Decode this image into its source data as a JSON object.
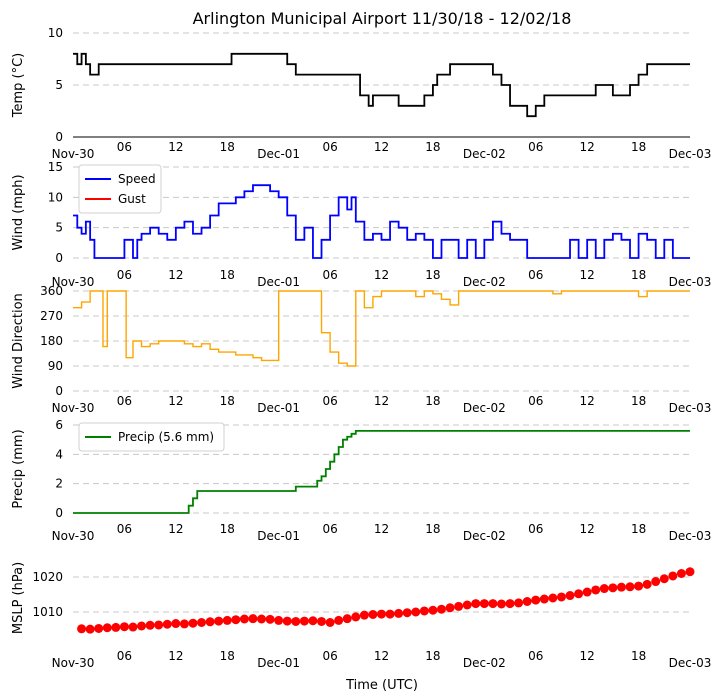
{
  "title": "Arlington Municipal Airport 11/30/18 - 12/02/18",
  "xlabel": "Time (UTC)",
  "time_ticks": [
    "Nov-30",
    "06",
    "12",
    "18",
    "Dec-01",
    "06",
    "12",
    "18",
    "Dec-02",
    "06",
    "12",
    "18",
    "Dec-03"
  ],
  "chart_data": [
    {
      "type": "line",
      "ylabel": "Temp (°C)",
      "ylim": [
        0,
        10
      ],
      "yticks": [
        "0",
        "5",
        "10"
      ],
      "color": "#000000",
      "grid": "horizontal dashed",
      "series": [
        {
          "name": "",
          "x_hours": [
            0,
            0.5,
            1,
            1.5,
            2,
            2.5,
            3,
            3.5,
            4,
            6,
            9,
            12,
            15,
            18,
            18.5,
            20,
            22,
            24,
            25,
            26,
            28,
            30,
            33,
            33.5,
            34.5,
            35,
            36,
            37,
            38,
            39,
            40,
            41,
            42,
            42.5,
            43,
            44,
            45,
            46,
            48,
            49,
            50,
            51,
            52,
            53,
            54,
            55,
            56,
            58,
            60,
            61,
            62,
            63,
            64,
            64.5,
            65,
            66,
            67,
            68,
            69,
            70,
            71,
            72
          ],
          "values": [
            8,
            7,
            8,
            7,
            6,
            6,
            7,
            7,
            7,
            7,
            7,
            7,
            7,
            7,
            8,
            8,
            8,
            8,
            7,
            6,
            6,
            6,
            6,
            4,
            3,
            4,
            4,
            4,
            3,
            3,
            3,
            4,
            5,
            6,
            6,
            7,
            7,
            7,
            7,
            6,
            5,
            3,
            3,
            2,
            3,
            4,
            4,
            4,
            4,
            5,
            5,
            4,
            4,
            4,
            5,
            6,
            7,
            7,
            7,
            7,
            7,
            7
          ]
        }
      ]
    },
    {
      "type": "line",
      "ylabel": "Wind (mph)",
      "ylim": [
        0,
        15
      ],
      "yticks": [
        "0",
        "5",
        "10",
        "15"
      ],
      "legend": "top-left",
      "grid": "horizontal dashed",
      "series": [
        {
          "name": "Speed",
          "color": "#0000ff",
          "x_hours": [
            0,
            0.5,
            1,
            1.5,
            2,
            2.5,
            3,
            3.3,
            4,
            5,
            6,
            7,
            7.5,
            8,
            9,
            10,
            11,
            12,
            13,
            14,
            15,
            16,
            17,
            18,
            19,
            20,
            21,
            22,
            23,
            24,
            25,
            26,
            27,
            28,
            29,
            30,
            31,
            32,
            32.5,
            33,
            34,
            35,
            36,
            37,
            38,
            39,
            40,
            41,
            42,
            43,
            44,
            45,
            46,
            47,
            48,
            49,
            50,
            51,
            52,
            53,
            54,
            55,
            56,
            57,
            58,
            59,
            60,
            61,
            62,
            63,
            64,
            65,
            66,
            67,
            68,
            69,
            70,
            71,
            72
          ],
          "values": [
            7,
            5,
            4,
            6,
            3,
            0,
            0,
            0,
            0,
            0,
            3,
            0,
            3,
            4,
            5,
            4,
            3,
            5,
            6,
            4,
            5,
            7,
            9,
            9,
            10,
            11,
            12,
            12,
            11,
            10,
            7,
            3,
            5,
            0,
            3,
            7,
            10,
            8,
            10,
            6,
            3,
            4,
            3,
            6,
            5,
            3,
            4,
            3,
            0,
            3,
            3,
            0,
            3,
            0,
            3,
            6,
            4,
            3,
            3,
            0,
            0,
            0,
            0,
            0,
            3,
            0,
            3,
            0,
            3,
            4,
            3,
            0,
            4,
            3,
            0,
            3,
            0,
            0,
            0
          ]
        },
        {
          "name": "Gust",
          "color": "#ff0000",
          "x_hours": [],
          "values": []
        }
      ]
    },
    {
      "type": "line",
      "ylabel": "Wind Direction",
      "ylim": [
        0,
        360
      ],
      "yticks": [
        "0",
        "90",
        "180",
        "270",
        "360"
      ],
      "color": "#ffa500",
      "grid": "horizontal dashed",
      "series": [
        {
          "name": "",
          "x_hours": [
            0,
            1,
            2,
            3,
            3.5,
            4,
            5,
            6,
            6.2,
            7,
            8,
            9,
            10,
            11,
            12,
            13,
            14,
            15,
            16,
            17,
            18,
            19,
            20,
            21,
            22,
            23,
            24,
            25,
            26,
            27,
            28,
            29,
            30,
            31,
            32,
            33,
            34,
            35,
            36,
            37,
            38,
            39,
            40,
            41,
            42,
            43,
            44,
            45,
            46,
            47,
            48,
            49,
            50,
            51,
            52,
            53,
            54,
            55,
            56,
            57,
            58,
            59,
            60,
            61,
            62,
            63,
            64,
            65,
            66,
            67,
            68,
            69,
            70,
            71,
            72
          ],
          "values": [
            300,
            320,
            360,
            360,
            160,
            360,
            360,
            360,
            120,
            180,
            160,
            170,
            180,
            180,
            180,
            170,
            160,
            170,
            150,
            140,
            140,
            130,
            130,
            120,
            110,
            110,
            360,
            360,
            360,
            360,
            360,
            210,
            140,
            100,
            90,
            360,
            300,
            340,
            360,
            360,
            360,
            360,
            340,
            360,
            350,
            330,
            310,
            360,
            360,
            360,
            360,
            360,
            360,
            360,
            360,
            360,
            360,
            360,
            350,
            360,
            360,
            360,
            360,
            360,
            360,
            360,
            360,
            360,
            340,
            360,
            360,
            360,
            360,
            360,
            360
          ]
        }
      ]
    },
    {
      "type": "line",
      "ylabel": "Precip (mm)",
      "ylim": [
        0,
        6
      ],
      "yticks": [
        "0",
        "2",
        "4",
        "6"
      ],
      "legend": "top-left",
      "grid": "horizontal dashed",
      "series": [
        {
          "name": "Precip (5.6 mm)",
          "color": "#008000",
          "x_hours": [
            0,
            13,
            13.5,
            14,
            14.5,
            25.5,
            26,
            28,
            28.5,
            29,
            29.5,
            30,
            30.5,
            31,
            31.5,
            32,
            32.5,
            33,
            72
          ],
          "values": [
            0,
            0,
            0.5,
            1.0,
            1.5,
            1.5,
            1.8,
            1.8,
            2.2,
            2.5,
            3.0,
            3.5,
            4.0,
            4.5,
            5.0,
            5.2,
            5.4,
            5.6,
            5.6
          ]
        }
      ]
    },
    {
      "type": "scatter",
      "ylabel": "MSLP (hPa)",
      "ylim": [
        1002,
        1026
      ],
      "yticks": [
        "1010",
        "1020"
      ],
      "color": "#ff0000",
      "grid": "horizontal dashed",
      "series": [
        {
          "name": "",
          "x_hours": [
            1,
            2,
            3,
            4,
            5,
            6,
            7,
            8,
            9,
            10,
            11,
            12,
            13,
            14,
            15,
            16,
            17,
            18,
            19,
            20,
            21,
            22,
            23,
            24,
            25,
            26,
            27,
            28,
            29,
            30,
            31,
            32,
            33,
            34,
            35,
            36,
            37,
            38,
            39,
            40,
            41,
            42,
            43,
            44,
            45,
            46,
            47,
            48,
            49,
            50,
            51,
            52,
            53,
            54,
            55,
            56,
            57,
            58,
            59,
            60,
            61,
            62,
            63,
            64,
            65,
            66,
            67,
            68,
            69,
            70,
            71,
            72
          ],
          "values": [
            1005.2,
            1005.1,
            1005.3,
            1005.5,
            1005.6,
            1005.8,
            1005.7,
            1006.0,
            1006.2,
            1006.3,
            1006.5,
            1006.7,
            1006.6,
            1006.8,
            1007.0,
            1007.2,
            1007.4,
            1007.6,
            1007.8,
            1008.0,
            1008.1,
            1008.0,
            1007.9,
            1007.6,
            1007.4,
            1007.3,
            1007.4,
            1007.5,
            1007.3,
            1007.0,
            1007.6,
            1008.1,
            1008.6,
            1009.1,
            1009.3,
            1009.4,
            1009.4,
            1009.6,
            1009.8,
            1010.0,
            1010.3,
            1010.5,
            1010.8,
            1011.2,
            1011.6,
            1012.0,
            1012.4,
            1012.4,
            1012.4,
            1012.3,
            1012.4,
            1012.6,
            1013.0,
            1013.4,
            1013.7,
            1014.0,
            1014.3,
            1014.7,
            1015.2,
            1015.7,
            1016.3,
            1016.7,
            1016.9,
            1017.1,
            1017.2,
            1017.4,
            1017.9,
            1018.7,
            1019.5,
            1020.3,
            1021.0,
            1021.5
          ]
        }
      ]
    }
  ]
}
